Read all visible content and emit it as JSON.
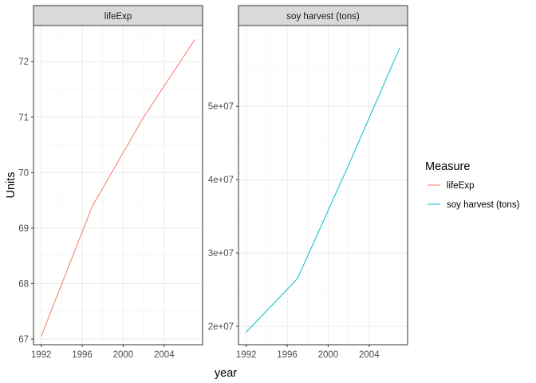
{
  "chart_data": {
    "type": "line",
    "xlabel": "year",
    "ylabel": "Units",
    "x_ticks": [
      "1992",
      "1996",
      "2000",
      "2004"
    ],
    "legend": {
      "title": "Measure",
      "position": "right",
      "entries": [
        {
          "label": "lifeExp",
          "color": "#F8766D"
        },
        {
          "label": "soy harvest (tons)",
          "color": "#00BFC4"
        }
      ]
    },
    "grid": true,
    "facets": [
      {
        "strip": "lifeExp",
        "color": "#F8766D",
        "xlim": [
          1991.25,
          2007.75
        ],
        "ylim": [
          66.9,
          72.65
        ],
        "y_ticks": [
          {
            "value": 67,
            "label": "67"
          },
          {
            "value": 68,
            "label": "68"
          },
          {
            "value": 69,
            "label": "69"
          },
          {
            "value": 70,
            "label": "70"
          },
          {
            "value": 71,
            "label": "71"
          },
          {
            "value": 72,
            "label": "72"
          }
        ],
        "x": [
          1992,
          1997,
          2002,
          2007
        ],
        "y": [
          67.05,
          69.4,
          71.0,
          72.4
        ]
      },
      {
        "strip": "soy harvest (tons)",
        "color": "#00BFC4",
        "xlim": [
          1991.25,
          2007.75
        ],
        "ylim": [
          17500000,
          61000000
        ],
        "y_ticks": [
          {
            "value": 20000000,
            "label": "2e+07"
          },
          {
            "value": 30000000,
            "label": "3e+07"
          },
          {
            "value": 40000000,
            "label": "4e+07"
          },
          {
            "value": 50000000,
            "label": "5e+07"
          }
        ],
        "x": [
          1992,
          1997,
          2002,
          2007
        ],
        "y": [
          19200000,
          26500000,
          42000000,
          58000000
        ]
      }
    ]
  }
}
